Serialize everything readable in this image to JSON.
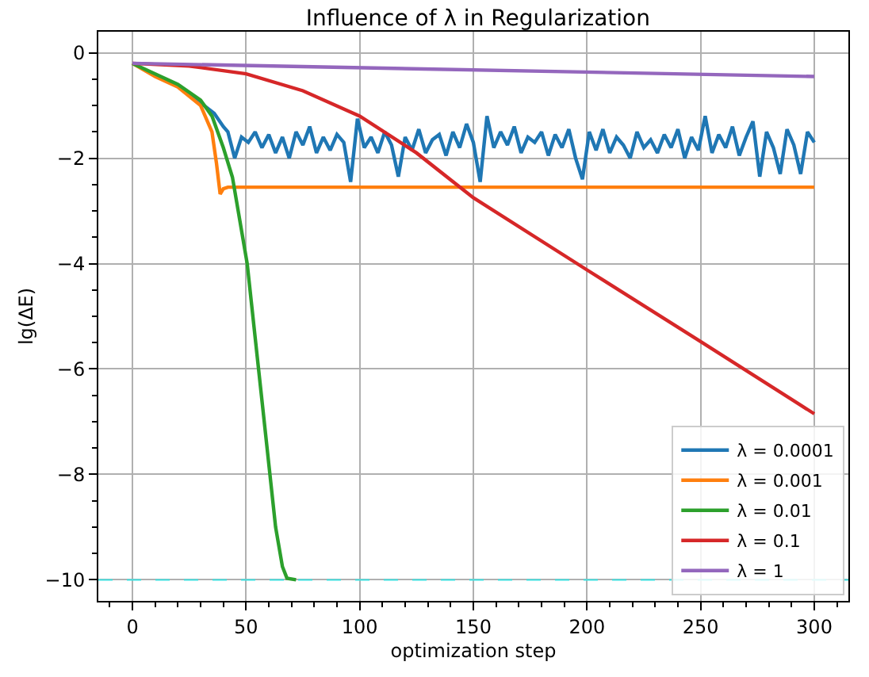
{
  "chart_data": {
    "type": "line",
    "title": "Influence of λ in Regularization",
    "xlabel": "optimization step",
    "ylabel": "lg(ΔE)",
    "xlim": [
      -15,
      315
    ],
    "xticks": [
      0,
      50,
      100,
      150,
      200,
      250,
      300
    ],
    "ylim": [
      -10.4,
      0.4
    ],
    "yticks": [
      {
        "value": 0,
        "label": "0"
      },
      {
        "value": -2,
        "label": "−2"
      },
      {
        "value": -4,
        "label": "−4"
      },
      {
        "value": -6,
        "label": "−6"
      },
      {
        "value": -8,
        "label": "−8"
      },
      {
        "value": -10,
        "label": "−10"
      }
    ],
    "grid": true,
    "legend": "bottom right",
    "marker": "none",
    "line_style": "solid",
    "ref_lines": [
      {
        "axis": "y",
        "value": -10,
        "color": "#40e0e0",
        "line_style": "dashed"
      }
    ],
    "series": [
      {
        "name": "λ = 0.0001",
        "color": "#1f77b4",
        "x": [
          20,
          30,
          36,
          40,
          42,
          45,
          48,
          51,
          54,
          57,
          60,
          63,
          66,
          69,
          72,
          75,
          78,
          81,
          84,
          87,
          90,
          93,
          96,
          99,
          102,
          105,
          108,
          111,
          114,
          117,
          120,
          123,
          126,
          129,
          132,
          135,
          138,
          141,
          144,
          147,
          150,
          153,
          156,
          159,
          162,
          165,
          168,
          171,
          174,
          177,
          180,
          183,
          186,
          189,
          192,
          195,
          198,
          201,
          204,
          207,
          210,
          213,
          216,
          219,
          222,
          225,
          228,
          231,
          234,
          237,
          240,
          243,
          246,
          249,
          252,
          255,
          258,
          261,
          264,
          267,
          270,
          273,
          276,
          279,
          282,
          285,
          288,
          291,
          294,
          297,
          300
        ],
        "values": [
          -0.62,
          -0.95,
          -1.15,
          -1.4,
          -1.5,
          -2.0,
          -1.6,
          -1.7,
          -1.5,
          -1.8,
          -1.55,
          -1.9,
          -1.6,
          -2.0,
          -1.5,
          -1.75,
          -1.4,
          -1.9,
          -1.6,
          -1.85,
          -1.55,
          -1.7,
          -2.45,
          -1.25,
          -1.8,
          -1.6,
          -1.9,
          -1.5,
          -1.75,
          -2.35,
          -1.6,
          -1.85,
          -1.45,
          -1.9,
          -1.65,
          -1.55,
          -1.95,
          -1.5,
          -1.8,
          -1.35,
          -1.7,
          -2.45,
          -1.2,
          -1.8,
          -1.5,
          -1.75,
          -1.4,
          -1.9,
          -1.6,
          -1.7,
          -1.5,
          -1.95,
          -1.55,
          -1.8,
          -1.45,
          -2.0,
          -2.4,
          -1.5,
          -1.85,
          -1.45,
          -1.9,
          -1.6,
          -1.75,
          -2.0,
          -1.5,
          -1.8,
          -1.65,
          -1.9,
          -1.55,
          -1.8,
          -1.45,
          -2.0,
          -1.6,
          -1.85,
          -1.2,
          -1.9,
          -1.55,
          -1.8,
          -1.4,
          -1.95,
          -1.6,
          -1.3,
          -2.35,
          -1.5,
          -1.8,
          -2.3,
          -1.45,
          -1.75,
          -2.3,
          -1.5,
          -1.7
        ]
      },
      {
        "name": "λ = 0.001",
        "color": "#ff7f0e",
        "x": [
          0,
          10,
          20,
          30,
          35,
          37,
          38.6,
          40,
          42,
          100,
          200,
          300
        ],
        "values": [
          -0.2,
          -0.45,
          -0.65,
          -1.0,
          -1.5,
          -2.1,
          -2.68,
          -2.58,
          -2.55,
          -2.55,
          -2.55,
          -2.55
        ]
      },
      {
        "name": "λ = 0.01",
        "color": "#2ca02c",
        "x": [
          0,
          10,
          20,
          30,
          35,
          40,
          44,
          50.5,
          55.5,
          60.5,
          63,
          66,
          68,
          72
        ],
        "values": [
          -0.2,
          -0.4,
          -0.6,
          -0.9,
          -1.2,
          -1.8,
          -2.36,
          -4.0,
          -6.0,
          -8.0,
          -9.0,
          -9.75,
          -9.97,
          -10.0
        ]
      },
      {
        "name": "λ = 0.1",
        "color": "#d62728",
        "x": [
          0,
          25,
          50,
          75,
          100,
          125,
          150,
          200,
          250,
          300
        ],
        "values": [
          -0.2,
          -0.25,
          -0.4,
          -0.72,
          -1.2,
          -1.9,
          -2.75,
          -4.12,
          -5.48,
          -6.85
        ]
      },
      {
        "name": "λ = 1",
        "color": "#9467bd",
        "x": [
          0,
          300
        ],
        "values": [
          -0.2,
          -0.45
        ]
      }
    ]
  }
}
